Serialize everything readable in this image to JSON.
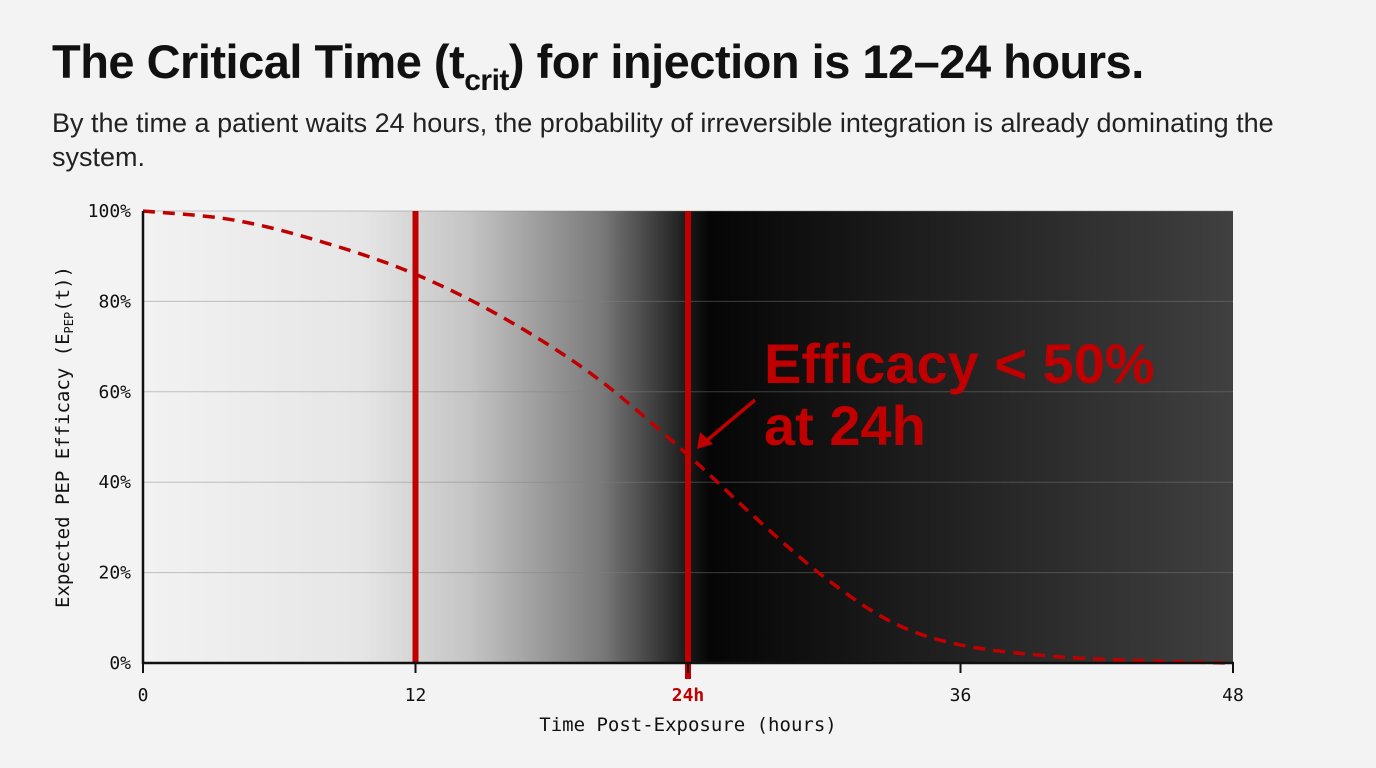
{
  "header": {
    "title_pre": "The Critical Time (t",
    "title_sub": "crit",
    "title_post": ") for injection is 12–24 hours.",
    "subtitle": "By the time a patient waits 24 hours, the probability of irreversible integration is already dominating the system."
  },
  "colors": {
    "accent": "#c00000",
    "background": "#f3f3f3"
  },
  "chart_data": {
    "type": "line",
    "title": "",
    "xlabel": "Time Post-Exposure (hours)",
    "ylabel_pre": "Expected PEP Efficacy (E",
    "ylabel_sub": "PEP",
    "ylabel_post": "(t))",
    "xlim": [
      0,
      48
    ],
    "ylim": [
      0,
      100
    ],
    "x_ticks": [
      0,
      12,
      24,
      36,
      48
    ],
    "x_tick_labels": [
      "0",
      "12",
      "24h",
      "36",
      "48"
    ],
    "y_ticks": [
      0,
      20,
      40,
      60,
      80,
      100
    ],
    "y_tick_labels": [
      "0%",
      "20%",
      "40%",
      "60%",
      "80%",
      "100%"
    ],
    "grid": "horizontal",
    "series": [
      {
        "style": "dashed",
        "color": "#c00000",
        "x": [
          0,
          4,
          8,
          12,
          16,
          20,
          24,
          27,
          30,
          33,
          36,
          40,
          44,
          48
        ],
        "y": [
          100,
          98,
          93,
          86,
          76,
          63,
          46,
          32,
          19,
          9,
          4,
          1.5,
          0.5,
          0
        ]
      }
    ],
    "vertical_lines": [
      12,
      24
    ],
    "background": "gradient: light grey before 12h darkening to black at 24h, then dark grey toward 48h",
    "annotation": {
      "line1": "Efficacy < 50%",
      "line2": "at 24h",
      "points_to": [
        24,
        46
      ]
    }
  }
}
